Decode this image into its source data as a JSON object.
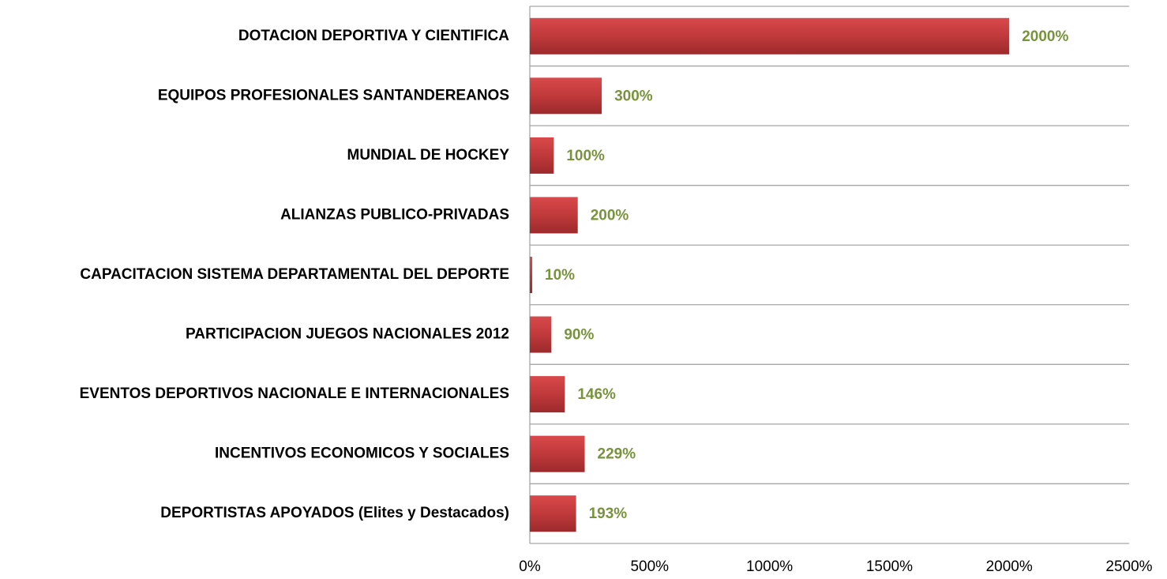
{
  "chart_data": {
    "type": "barh",
    "categories": [
      "DOTACION DEPORTIVA Y CIENTIFICA",
      "EQUIPOS PROFESIONALES SANTANDEREANOS",
      "MUNDIAL DE HOCKEY",
      "ALIANZAS PUBLICO-PRIVADAS",
      "CAPACITACION SISTEMA DEPARTAMENTAL DEL DEPORTE",
      "PARTICIPACION JUEGOS NACIONALES 2012",
      "EVENTOS DEPORTIVOS NACIONALE E INTERNACIONALES",
      "INCENTIVOS ECONOMICOS Y SOCIALES",
      "DEPORTISTAS APOYADOS (Elites y Destacados)"
    ],
    "values": [
      2000,
      300,
      100,
      200,
      10,
      90,
      146,
      229,
      193
    ],
    "value_labels": [
      "2000%",
      "300%",
      "100%",
      "200%",
      "10%",
      "90%",
      "146%",
      "229%",
      "193%"
    ],
    "color": "#c0393b",
    "xlim": [
      0,
      2500
    ],
    "xticks": [
      {
        "value": 0,
        "label": "0%"
      },
      {
        "value": 500,
        "label": "500%"
      },
      {
        "value": 1000,
        "label": "1000%"
      },
      {
        "value": 1500,
        "label": "1500%"
      },
      {
        "value": 2000,
        "label": "2000%"
      },
      {
        "value": 2500,
        "label": "2500%"
      }
    ]
  }
}
